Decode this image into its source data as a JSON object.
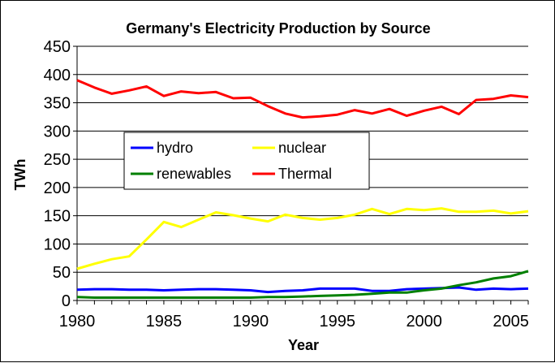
{
  "chart_data": {
    "type": "line",
    "title": "Germany's Electricity Production by Source",
    "xlabel": "Year",
    "ylabel": "TWh",
    "xlim": [
      1980,
      2006
    ],
    "ylim": [
      0,
      450
    ],
    "x_ticks": [
      "1980",
      "1985",
      "1990",
      "1995",
      "2000",
      "2005"
    ],
    "y_ticks": [
      "0",
      "50",
      "100",
      "150",
      "200",
      "250",
      "300",
      "350",
      "400",
      "450"
    ],
    "grid": "horizontal",
    "legend_position": "center-left",
    "x": [
      1980,
      1981,
      1982,
      1983,
      1984,
      1985,
      1986,
      1987,
      1988,
      1989,
      1990,
      1991,
      1992,
      1993,
      1994,
      1995,
      1996,
      1997,
      1998,
      1999,
      2000,
      2001,
      2002,
      2003,
      2004,
      2005,
      2006
    ],
    "series": [
      {
        "name": "hydro",
        "color": "#0000ff",
        "values": [
          19,
          20,
          20,
          19,
          19,
          18,
          19,
          20,
          20,
          19,
          18,
          15,
          17,
          18,
          21,
          21,
          21,
          17,
          17,
          20,
          21,
          22,
          23,
          19,
          21,
          20,
          21
        ]
      },
      {
        "name": "nuclear",
        "color": "#ffff00",
        "values": [
          56,
          65,
          73,
          78,
          108,
          139,
          130,
          143,
          156,
          151,
          145,
          140,
          152,
          146,
          143,
          146,
          152,
          162,
          153,
          162,
          160,
          163,
          157,
          157,
          159,
          154,
          158
        ]
      },
      {
        "name": "renewables",
        "color": "#008000",
        "values": [
          6,
          5,
          5,
          5,
          5,
          5,
          5,
          5,
          5,
          5,
          5,
          6,
          6,
          7,
          8,
          9,
          10,
          12,
          14,
          14,
          18,
          21,
          27,
          32,
          39,
          43,
          52
        ]
      },
      {
        "name": "Thermal",
        "color": "#ff0000",
        "values": [
          390,
          377,
          366,
          372,
          379,
          362,
          370,
          367,
          369,
          358,
          359,
          344,
          331,
          324,
          326,
          329,
          337,
          331,
          339,
          327,
          336,
          343,
          330,
          355,
          357,
          363,
          360
        ]
      }
    ]
  }
}
